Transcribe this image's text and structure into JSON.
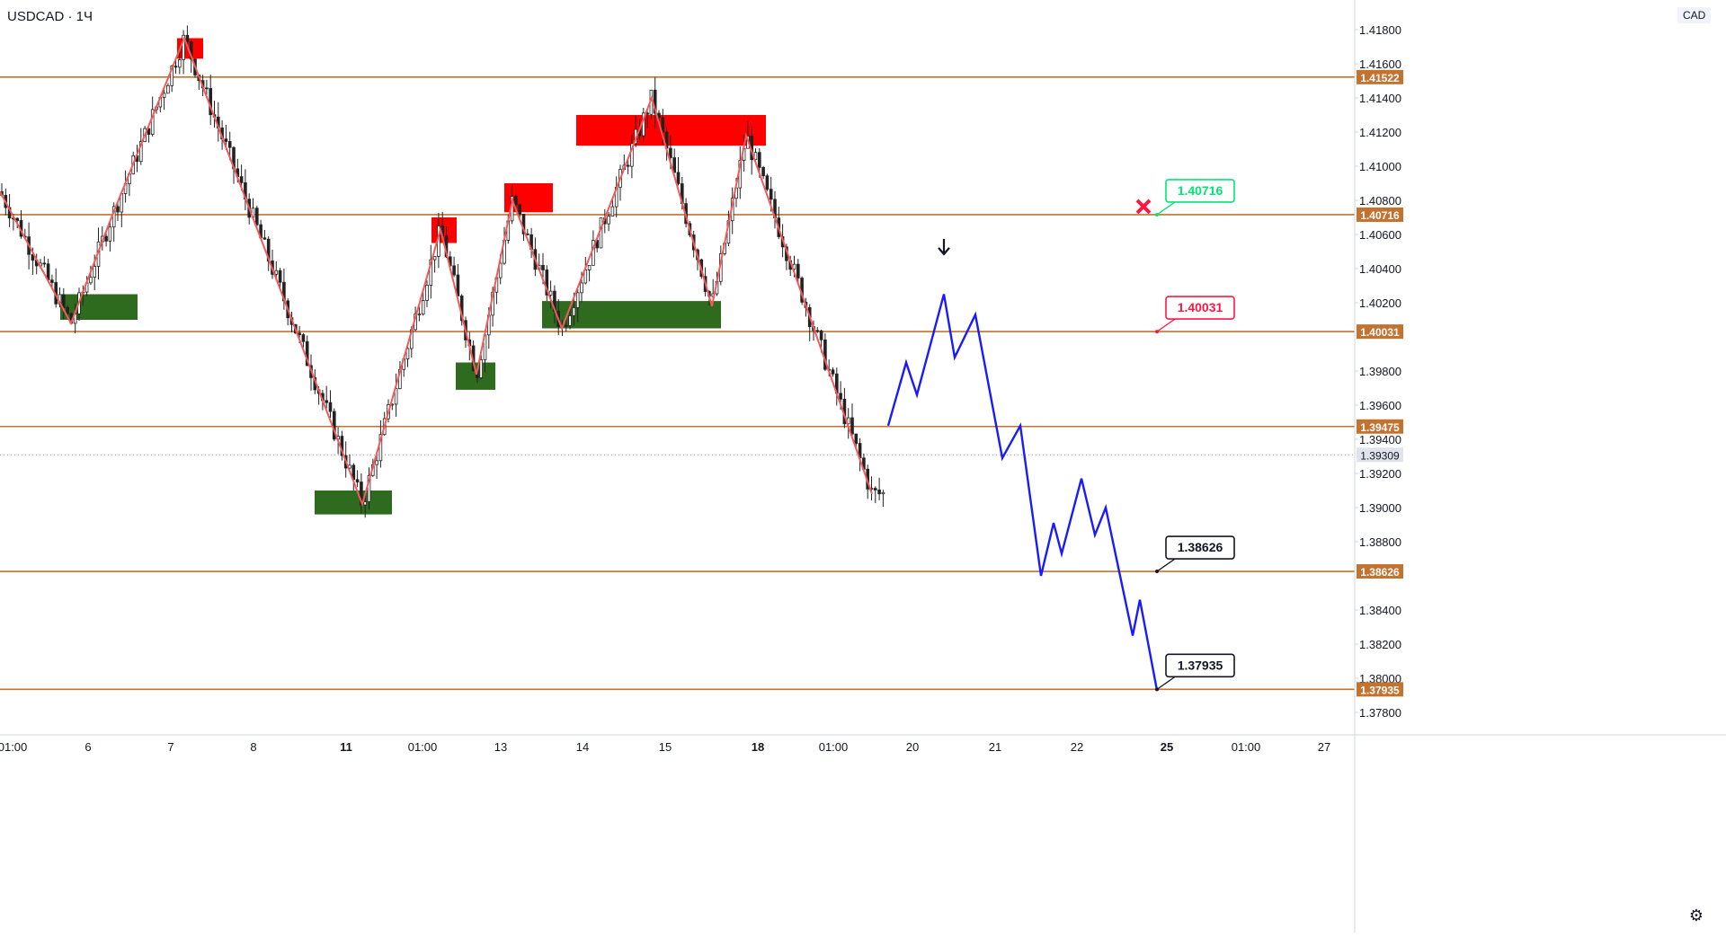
{
  "header": {
    "symbol": "USDCAD · 1Ч",
    "currency": "CAD"
  },
  "chart_data": {
    "type": "candlestick",
    "symbol": "USDCAD",
    "timeframe": "1Ч",
    "ylim": [
      1.377,
      1.419
    ],
    "y_ticks": [
      "1.41800",
      "1.41600",
      "1.41400",
      "1.41200",
      "1.41000",
      "1.40800",
      "1.40600",
      "1.40400",
      "1.40200",
      "1.39800",
      "1.39600",
      "1.39400",
      "1.39200",
      "1.39000",
      "1.38800",
      "1.38400",
      "1.38200",
      "1.38000",
      "1.37800"
    ],
    "x_ticks": [
      "01:00",
      "6",
      "7",
      "8",
      "11",
      "01:00",
      "13",
      "14",
      "15",
      "18",
      "01:00",
      "20",
      "21",
      "22",
      "25",
      "01:00",
      "27"
    ],
    "bold_x_ticks": [
      "11",
      "18",
      "25"
    ],
    "horizontal_levels": [
      {
        "value": 1.41522,
        "label": "1.41522"
      },
      {
        "value": 1.40716,
        "label": "1.40716"
      },
      {
        "value": 1.40031,
        "label": "1.40031"
      },
      {
        "value": 1.39475,
        "label": "1.39475"
      },
      {
        "value": 1.38626,
        "label": "1.38626"
      },
      {
        "value": 1.37935,
        "label": "1.37935"
      }
    ],
    "current_price": {
      "value": 1.39309,
      "label": "1.39309"
    },
    "callouts": [
      {
        "value": 1.40716,
        "label": "1.40716",
        "color": "#00e676"
      },
      {
        "value": 1.40031,
        "label": "1.40031",
        "color": "#ff1744"
      },
      {
        "value": 1.38626,
        "label": "1.38626",
        "color": "#131722"
      },
      {
        "value": 1.37935,
        "label": "1.37935",
        "color": "#131722"
      }
    ],
    "zigzag_path": [
      [
        0,
        1.4085
      ],
      [
        79,
        1.4008
      ],
      [
        124,
        1.407
      ],
      [
        205,
        1.4175
      ],
      [
        403,
        1.3902
      ],
      [
        490,
        1.4063
      ],
      [
        530,
        1.3978
      ],
      [
        570,
        1.408
      ],
      [
        625,
        1.4005
      ],
      [
        725,
        1.414
      ],
      [
        792,
        1.4018
      ],
      [
        830,
        1.4118
      ],
      [
        970,
        1.3908
      ]
    ],
    "projection_path": [
      [
        988,
        1.3948
      ],
      [
        1008,
        1.3985
      ],
      [
        1020,
        1.3966
      ],
      [
        1050,
        1.4025
      ],
      [
        1062,
        1.3988
      ],
      [
        1085,
        1.4013
      ],
      [
        1115,
        1.3929
      ],
      [
        1135,
        1.3948
      ],
      [
        1158,
        1.386
      ],
      [
        1172,
        1.3891
      ],
      [
        1181,
        1.3873
      ],
      [
        1203,
        1.3917
      ],
      [
        1218,
        1.3884
      ],
      [
        1230,
        1.39
      ],
      [
        1260,
        1.3825
      ],
      [
        1268,
        1.3846
      ],
      [
        1287,
        1.3793
      ]
    ],
    "supply_zones": [
      [
        197,
        226,
        1.4175,
        1.4163
      ],
      [
        480,
        508,
        1.407,
        1.4055
      ],
      [
        561,
        615,
        1.409,
        1.4073
      ],
      [
        641,
        852,
        1.413,
        1.4112
      ]
    ],
    "demand_zones": [
      [
        67,
        153,
        1.4025,
        1.401
      ],
      [
        507,
        551,
        1.3985,
        1.3969
      ],
      [
        603,
        802,
        1.4021,
        1.4005
      ],
      [
        350,
        436,
        1.391,
        1.3896
      ]
    ],
    "candle_range_x": [
      0,
      985
    ],
    "annotations": [
      "down-arrow",
      "cancel-x-mark"
    ]
  },
  "colors": {
    "level_line": "#c4722f",
    "level_label_bg": "#c4722f",
    "zigzag": "#f05a5a",
    "projection": "#1a1aff",
    "supply_zone": "#ff0000",
    "demand_zone": "#2e6b1f",
    "callout_green": "#00e676",
    "callout_red": "#ff1744",
    "cancel_mark": "#ff1744",
    "candle": "#222222"
  }
}
